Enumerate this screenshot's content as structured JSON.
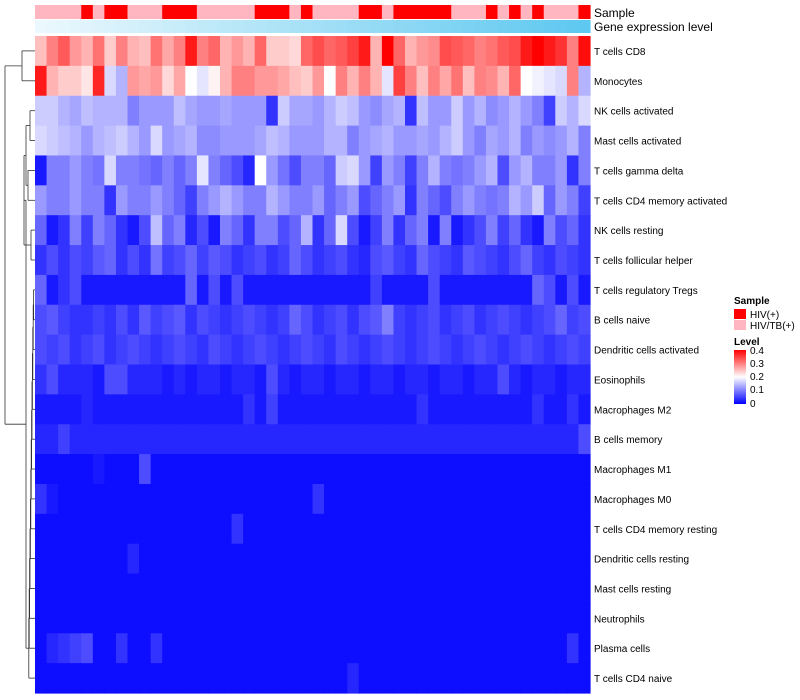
{
  "chart_data": {
    "type": "heatmap",
    "title": "",
    "annotation_tracks": [
      {
        "name": "Sample",
        "type": "categorical"
      },
      {
        "name": "Gene expression level",
        "type": "gradient"
      }
    ],
    "rows": [
      "T cells CD8",
      "Monocytes",
      "NK cells activated",
      "Mast cells activated",
      "T cells gamma delta",
      "T cells CD4 memory activated",
      "NK cells resting",
      "T cells follicular helper",
      "T cells regulatory  Tregs",
      "B cells naive",
      "Dendritic cells activated",
      "Eosinophils",
      "Macrophages M2",
      "B cells memory",
      "Macrophages M1",
      "Macrophages M0",
      "T cells CD4 memory resting",
      "Dendritic cells resting",
      "Mast cells resting",
      "Neutrophils",
      "Plasma cells",
      "T cells CD4 naive"
    ],
    "sample_groups": [
      1,
      1,
      1,
      1,
      0,
      1,
      0,
      0,
      1,
      1,
      1,
      0,
      0,
      0,
      1,
      1,
      1,
      1,
      1,
      0,
      0,
      0,
      1,
      0,
      1,
      1,
      1,
      1,
      0,
      0,
      1,
      0,
      0,
      0,
      0,
      0,
      1,
      1,
      1,
      0,
      1,
      0,
      1,
      0,
      1,
      1,
      1,
      0
    ],
    "expression_values": [
      [
        0.25,
        0.3,
        0.33,
        0.28,
        0.26,
        0.31,
        0.24,
        0.3,
        0.26,
        0.25,
        0.31,
        0.27,
        0.3,
        0.38,
        0.3,
        0.32,
        0.26,
        0.28,
        0.26,
        0.32,
        0.24,
        0.24,
        0.23,
        0.32,
        0.34,
        0.32,
        0.33,
        0.35,
        0.38,
        0.26,
        0.4,
        0.32,
        0.26,
        0.28,
        0.29,
        0.34,
        0.33,
        0.32,
        0.3,
        0.31,
        0.33,
        0.34,
        0.38,
        0.4,
        0.38,
        0.36,
        0.3,
        0.39
      ],
      [
        0.38,
        0.26,
        0.24,
        0.24,
        0.22,
        0.37,
        0.17,
        0.14,
        0.28,
        0.27,
        0.28,
        0.23,
        0.27,
        0.2,
        0.18,
        0.21,
        0.26,
        0.3,
        0.3,
        0.28,
        0.28,
        0.27,
        0.25,
        0.24,
        0.28,
        0.2,
        0.3,
        0.26,
        0.3,
        0.26,
        0.18,
        0.35,
        0.3,
        0.25,
        0.3,
        0.27,
        0.31,
        0.25,
        0.3,
        0.29,
        0.26,
        0.32,
        0.2,
        0.19,
        0.18,
        0.17,
        0.3,
        0.14
      ],
      [
        0.16,
        0.16,
        0.14,
        0.13,
        0.15,
        0.14,
        0.14,
        0.14,
        0.1,
        0.12,
        0.12,
        0.12,
        0.15,
        0.13,
        0.12,
        0.12,
        0.13,
        0.12,
        0.12,
        0.12,
        0.04,
        0.16,
        0.13,
        0.13,
        0.12,
        0.14,
        0.16,
        0.15,
        0.12,
        0.11,
        0.13,
        0.14,
        0.04,
        0.15,
        0.12,
        0.12,
        0.16,
        0.12,
        0.14,
        0.11,
        0.12,
        0.14,
        0.12,
        0.1,
        0.05,
        0.16,
        0.14,
        0.17
      ],
      [
        0.17,
        0.16,
        0.15,
        0.14,
        0.12,
        0.14,
        0.15,
        0.16,
        0.14,
        0.12,
        0.17,
        0.12,
        0.13,
        0.14,
        0.11,
        0.11,
        0.12,
        0.12,
        0.12,
        0.13,
        0.15,
        0.14,
        0.12,
        0.12,
        0.12,
        0.14,
        0.14,
        0.1,
        0.12,
        0.13,
        0.14,
        0.12,
        0.12,
        0.13,
        0.12,
        0.14,
        0.16,
        0.12,
        0.1,
        0.13,
        0.12,
        0.14,
        0.1,
        0.12,
        0.11,
        0.12,
        0.14,
        0.1
      ],
      [
        0.02,
        0.1,
        0.1,
        0.12,
        0.1,
        0.09,
        0.17,
        0.1,
        0.1,
        0.09,
        0.08,
        0.1,
        0.08,
        0.1,
        0.18,
        0.1,
        0.08,
        0.06,
        0.03,
        0.2,
        0.12,
        0.09,
        0.06,
        0.1,
        0.1,
        0.08,
        0.16,
        0.17,
        0.12,
        0.05,
        0.12,
        0.1,
        0.05,
        0.1,
        0.14,
        0.1,
        0.09,
        0.1,
        0.12,
        0.14,
        0.06,
        0.12,
        0.14,
        0.1,
        0.1,
        0.12,
        0.04,
        0.1
      ],
      [
        0.12,
        0.1,
        0.1,
        0.12,
        0.1,
        0.1,
        0.04,
        0.12,
        0.1,
        0.1,
        0.12,
        0.1,
        0.08,
        0.05,
        0.1,
        0.12,
        0.14,
        0.12,
        0.1,
        0.1,
        0.14,
        0.12,
        0.1,
        0.1,
        0.12,
        0.08,
        0.1,
        0.12,
        0.06,
        0.08,
        0.1,
        0.12,
        0.04,
        0.1,
        0.08,
        0.06,
        0.1,
        0.12,
        0.1,
        0.09,
        0.1,
        0.14,
        0.12,
        0.16,
        0.08,
        0.12,
        0.1,
        0.05
      ],
      [
        0.08,
        0.02,
        0.04,
        0.1,
        0.05,
        0.1,
        0.08,
        0.04,
        0.02,
        0.06,
        0.15,
        0.08,
        0.1,
        0.03,
        0.06,
        0.02,
        0.1,
        0.08,
        0.04,
        0.1,
        0.1,
        0.06,
        0.08,
        0.14,
        0.04,
        0.08,
        0.17,
        0.06,
        0.02,
        0.05,
        0.1,
        0.04,
        0.08,
        0.1,
        0.02,
        0.1,
        0.02,
        0.04,
        0.06,
        0.1,
        0.05,
        0.08,
        0.04,
        0.02,
        0.1,
        0.06,
        0.08,
        0.04
      ],
      [
        0.04,
        0.06,
        0.04,
        0.06,
        0.05,
        0.07,
        0.08,
        0.04,
        0.06,
        0.04,
        0.09,
        0.05,
        0.06,
        0.08,
        0.05,
        0.07,
        0.06,
        0.04,
        0.05,
        0.06,
        0.04,
        0.05,
        0.08,
        0.06,
        0.04,
        0.05,
        0.06,
        0.04,
        0.03,
        0.06,
        0.07,
        0.05,
        0.04,
        0.08,
        0.06,
        0.05,
        0.04,
        0.07,
        0.06,
        0.05,
        0.04,
        0.06,
        0.08,
        0.05,
        0.04,
        0.06,
        0.05,
        0.04
      ],
      [
        0.08,
        0.02,
        0.04,
        0.06,
        0.02,
        0.02,
        0.02,
        0.02,
        0.02,
        0.02,
        0.02,
        0.02,
        0.02,
        0.08,
        0.02,
        0.06,
        0.02,
        0.06,
        0.02,
        0.02,
        0.02,
        0.02,
        0.02,
        0.02,
        0.02,
        0.02,
        0.02,
        0.02,
        0.02,
        0.05,
        0.02,
        0.02,
        0.02,
        0.02,
        0.06,
        0.02,
        0.02,
        0.02,
        0.02,
        0.02,
        0.02,
        0.02,
        0.02,
        0.08,
        0.06,
        0.02,
        0.06,
        0.02
      ],
      [
        0.06,
        0.07,
        0.05,
        0.04,
        0.04,
        0.05,
        0.04,
        0.06,
        0.04,
        0.07,
        0.05,
        0.06,
        0.07,
        0.04,
        0.06,
        0.05,
        0.04,
        0.05,
        0.06,
        0.05,
        0.04,
        0.05,
        0.08,
        0.06,
        0.04,
        0.05,
        0.06,
        0.04,
        0.06,
        0.07,
        0.1,
        0.05,
        0.04,
        0.05,
        0.06,
        0.04,
        0.05,
        0.06,
        0.04,
        0.05,
        0.06,
        0.05,
        0.04,
        0.05,
        0.06,
        0.08,
        0.05,
        0.06
      ],
      [
        0.06,
        0.05,
        0.06,
        0.04,
        0.05,
        0.06,
        0.04,
        0.05,
        0.06,
        0.05,
        0.04,
        0.05,
        0.06,
        0.05,
        0.04,
        0.06,
        0.05,
        0.04,
        0.05,
        0.06,
        0.05,
        0.04,
        0.05,
        0.06,
        0.05,
        0.04,
        0.06,
        0.05,
        0.04,
        0.05,
        0.06,
        0.05,
        0.04,
        0.05,
        0.06,
        0.05,
        0.04,
        0.05,
        0.06,
        0.05,
        0.04,
        0.05,
        0.06,
        0.05,
        0.04,
        0.05,
        0.06,
        0.05
      ],
      [
        0.04,
        0.06,
        0.03,
        0.03,
        0.03,
        0.02,
        0.06,
        0.06,
        0.03,
        0.03,
        0.03,
        0.02,
        0.03,
        0.02,
        0.03,
        0.03,
        0.02,
        0.03,
        0.03,
        0.02,
        0.06,
        0.03,
        0.02,
        0.03,
        0.03,
        0.02,
        0.03,
        0.03,
        0.02,
        0.03,
        0.03,
        0.02,
        0.03,
        0.03,
        0.02,
        0.03,
        0.03,
        0.02,
        0.03,
        0.03,
        0.06,
        0.03,
        0.02,
        0.03,
        0.03,
        0.02,
        0.03,
        0.03
      ],
      [
        0.02,
        0.02,
        0.02,
        0.02,
        0.03,
        0.02,
        0.02,
        0.02,
        0.02,
        0.02,
        0.02,
        0.02,
        0.02,
        0.02,
        0.02,
        0.02,
        0.02,
        0.02,
        0.04,
        0.02,
        0.05,
        0.02,
        0.02,
        0.02,
        0.02,
        0.02,
        0.02,
        0.02,
        0.02,
        0.02,
        0.02,
        0.02,
        0.02,
        0.04,
        0.02,
        0.02,
        0.02,
        0.02,
        0.02,
        0.02,
        0.02,
        0.02,
        0.02,
        0.04,
        0.02,
        0.02,
        0.04,
        0.02
      ],
      [
        0.03,
        0.03,
        0.05,
        0.03,
        0.03,
        0.03,
        0.03,
        0.03,
        0.03,
        0.03,
        0.03,
        0.03,
        0.03,
        0.03,
        0.03,
        0.03,
        0.03,
        0.03,
        0.03,
        0.03,
        0.03,
        0.03,
        0.03,
        0.03,
        0.03,
        0.03,
        0.03,
        0.03,
        0.03,
        0.03,
        0.03,
        0.03,
        0.03,
        0.03,
        0.03,
        0.03,
        0.03,
        0.03,
        0.03,
        0.03,
        0.03,
        0.03,
        0.03,
        0.03,
        0.03,
        0.03,
        0.03,
        0.06
      ],
      [
        0.01,
        0.01,
        0.01,
        0.01,
        0.01,
        0.02,
        0.01,
        0.01,
        0.01,
        0.06,
        0.01,
        0.01,
        0.01,
        0.01,
        0.01,
        0.01,
        0.01,
        0.01,
        0.01,
        0.01,
        0.01,
        0.01,
        0.01,
        0.01,
        0.01,
        0.01,
        0.01,
        0.01,
        0.01,
        0.01,
        0.01,
        0.01,
        0.01,
        0.01,
        0.01,
        0.01,
        0.01,
        0.01,
        0.01,
        0.01,
        0.01,
        0.01,
        0.01,
        0.01,
        0.01,
        0.01,
        0.01,
        0.01
      ],
      [
        0.04,
        0.02,
        0.01,
        0.01,
        0.01,
        0.01,
        0.01,
        0.01,
        0.01,
        0.01,
        0.01,
        0.01,
        0.01,
        0.01,
        0.01,
        0.01,
        0.01,
        0.01,
        0.01,
        0.01,
        0.01,
        0.01,
        0.01,
        0.01,
        0.04,
        0.01,
        0.01,
        0.01,
        0.01,
        0.01,
        0.01,
        0.01,
        0.01,
        0.01,
        0.01,
        0.01,
        0.01,
        0.01,
        0.01,
        0.01,
        0.01,
        0.01,
        0.01,
        0.01,
        0.01,
        0.01,
        0.01,
        0.01
      ],
      [
        0.01,
        0.01,
        0.01,
        0.01,
        0.01,
        0.01,
        0.01,
        0.01,
        0.01,
        0.01,
        0.01,
        0.01,
        0.01,
        0.01,
        0.01,
        0.01,
        0.01,
        0.04,
        0.01,
        0.01,
        0.01,
        0.01,
        0.01,
        0.01,
        0.01,
        0.01,
        0.01,
        0.01,
        0.01,
        0.01,
        0.01,
        0.01,
        0.01,
        0.01,
        0.01,
        0.01,
        0.01,
        0.01,
        0.01,
        0.01,
        0.01,
        0.01,
        0.01,
        0.01,
        0.01,
        0.01,
        0.01,
        0.01
      ],
      [
        0.01,
        0.01,
        0.01,
        0.01,
        0.01,
        0.01,
        0.01,
        0.01,
        0.03,
        0.01,
        0.01,
        0.01,
        0.01,
        0.01,
        0.01,
        0.01,
        0.01,
        0.01,
        0.01,
        0.01,
        0.01,
        0.01,
        0.01,
        0.01,
        0.01,
        0.01,
        0.01,
        0.01,
        0.01,
        0.01,
        0.01,
        0.01,
        0.01,
        0.01,
        0.01,
        0.01,
        0.01,
        0.01,
        0.01,
        0.01,
        0.01,
        0.01,
        0.01,
        0.01,
        0.01,
        0.01,
        0.01,
        0.01
      ],
      [
        0.01,
        0.01,
        0.01,
        0.01,
        0.01,
        0.01,
        0.01,
        0.01,
        0.01,
        0.01,
        0.01,
        0.01,
        0.01,
        0.01,
        0.01,
        0.01,
        0.01,
        0.01,
        0.01,
        0.01,
        0.01,
        0.01,
        0.01,
        0.01,
        0.01,
        0.01,
        0.01,
        0.01,
        0.01,
        0.01,
        0.01,
        0.01,
        0.01,
        0.01,
        0.01,
        0.01,
        0.01,
        0.01,
        0.01,
        0.01,
        0.01,
        0.01,
        0.01,
        0.01,
        0.01,
        0.01,
        0.01,
        0.01
      ],
      [
        0.01,
        0.01,
        0.01,
        0.01,
        0.01,
        0.01,
        0.01,
        0.01,
        0.01,
        0.01,
        0.01,
        0.01,
        0.01,
        0.01,
        0.01,
        0.01,
        0.01,
        0.01,
        0.01,
        0.01,
        0.01,
        0.01,
        0.01,
        0.01,
        0.01,
        0.01,
        0.01,
        0.01,
        0.01,
        0.01,
        0.01,
        0.01,
        0.01,
        0.01,
        0.01,
        0.01,
        0.01,
        0.01,
        0.01,
        0.01,
        0.01,
        0.01,
        0.01,
        0.01,
        0.01,
        0.01,
        0.01,
        0.01
      ],
      [
        0.01,
        0.03,
        0.04,
        0.05,
        0.06,
        0.01,
        0.01,
        0.04,
        0.01,
        0.01,
        0.04,
        0.01,
        0.01,
        0.01,
        0.01,
        0.01,
        0.01,
        0.01,
        0.01,
        0.01,
        0.01,
        0.01,
        0.01,
        0.01,
        0.01,
        0.01,
        0.01,
        0.01,
        0.01,
        0.01,
        0.01,
        0.01,
        0.01,
        0.01,
        0.01,
        0.01,
        0.01,
        0.01,
        0.01,
        0.01,
        0.01,
        0.01,
        0.01,
        0.01,
        0.01,
        0.01,
        0.04,
        0.01
      ],
      [
        0.01,
        0.01,
        0.01,
        0.01,
        0.01,
        0.01,
        0.01,
        0.01,
        0.01,
        0.01,
        0.01,
        0.01,
        0.01,
        0.01,
        0.01,
        0.01,
        0.01,
        0.01,
        0.01,
        0.01,
        0.01,
        0.01,
        0.01,
        0.01,
        0.01,
        0.01,
        0.01,
        0.03,
        0.01,
        0.01,
        0.01,
        0.01,
        0.01,
        0.01,
        0.01,
        0.01,
        0.01,
        0.01,
        0.01,
        0.01,
        0.01,
        0.01,
        0.01,
        0.01,
        0.01,
        0.01,
        0.01,
        0.01
      ]
    ],
    "colorscale": {
      "low_color": "#0000ff",
      "mid_color": "#ffffff",
      "high_color": "#ff0000",
      "range": [
        0,
        0.4
      ]
    },
    "gene_expression_gradient": {
      "from_color": "#ebf8fd",
      "to_color": "#5ec8f0"
    },
    "legend": {
      "position": "right",
      "sample_title": "Sample",
      "sample_items": [
        {
          "label": "HIV(+)",
          "color": "#ff0000"
        },
        {
          "label": "HIV/TB(+)",
          "color": "#ffb6c1"
        }
      ],
      "level_title": "Level",
      "level_ticks": [
        "0.4",
        "0.3",
        "0.2",
        "0.1",
        "0"
      ]
    }
  }
}
